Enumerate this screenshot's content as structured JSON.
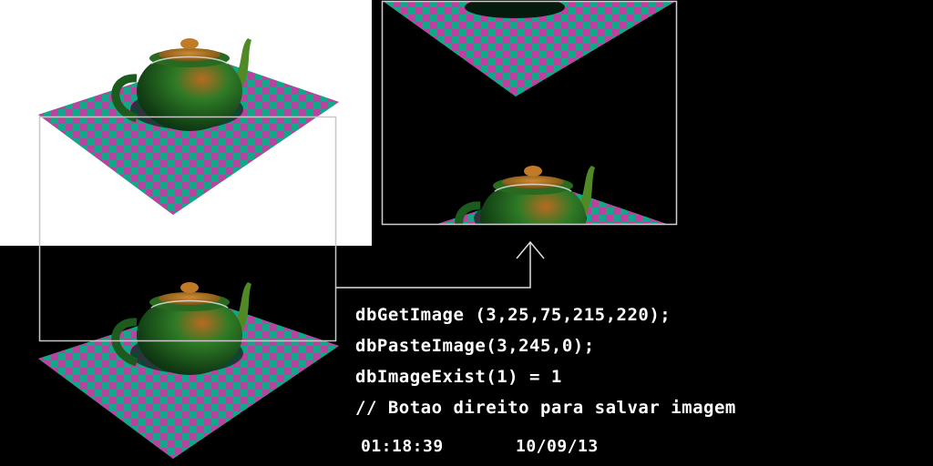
{
  "code": {
    "line1": "dbGetImage (3,25,75,215,220);",
    "line2": "dbPasteImage(3,245,0);",
    "line3": "dbImageExist(1) = 1",
    "line4": "// Botao direito para salvar imagem"
  },
  "status": {
    "time": "01:18:39",
    "date": "10/09/13"
  },
  "colors": {
    "background": "#000000",
    "panel": "#ffffff",
    "checker_pink": "#c040a0",
    "checker_teal": "#10a888",
    "teapot_green": "#2e7a26",
    "teapot_dark": "#0e3a12",
    "teapot_orange": "#b86a20",
    "frame": "#d0d0d0"
  },
  "icons": {
    "arrow": "up-arrow-icon"
  }
}
